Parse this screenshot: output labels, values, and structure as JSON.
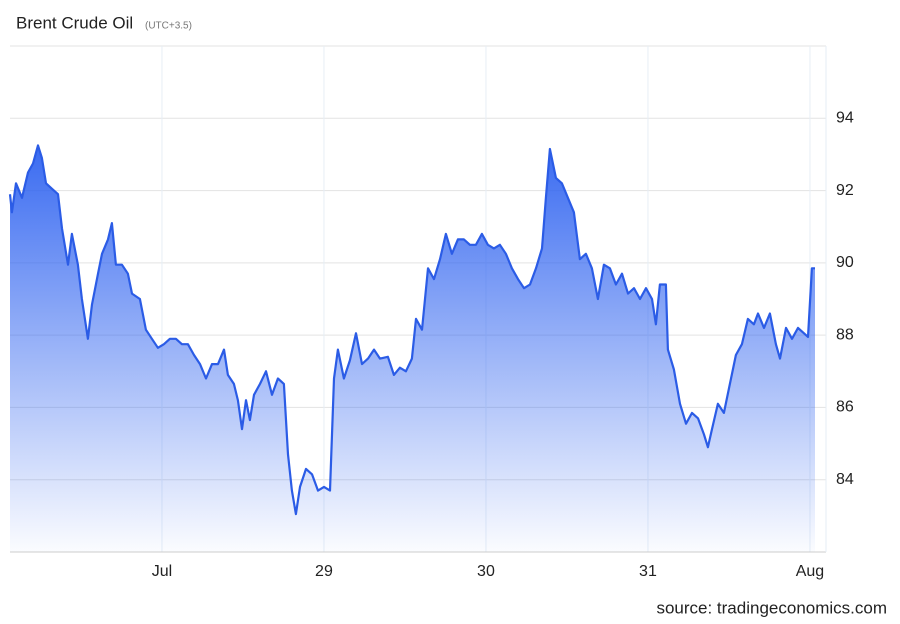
{
  "chart_data": {
    "type": "area",
    "title": "Brent Crude Oil",
    "subtitle": "(UTC+3.5)",
    "source": "source: tradingeconomics.com",
    "color": "#2b5ce6",
    "xlim": [
      -0.938,
      4.099
    ],
    "xticks": [
      {
        "value": 0,
        "label": "Jul"
      },
      {
        "value": 1,
        "label": "29"
      },
      {
        "value": 2,
        "label": "30"
      },
      {
        "value": 3,
        "label": "31"
      },
      {
        "value": 4,
        "label": "Aug"
      }
    ],
    "ylim": [
      82,
      96
    ],
    "yticks": [
      84,
      86,
      88,
      90,
      92,
      94
    ],
    "grid": true,
    "x": [
      -0.938,
      -0.926,
      -0.901,
      -0.864,
      -0.827,
      -0.796,
      -0.765,
      -0.741,
      -0.716,
      -0.679,
      -0.642,
      -0.617,
      -0.58,
      -0.556,
      -0.519,
      -0.494,
      -0.457,
      -0.432,
      -0.395,
      -0.37,
      -0.333,
      -0.309,
      -0.284,
      -0.247,
      -0.21,
      -0.185,
      -0.136,
      -0.099,
      -0.062,
      -0.025,
      0.012,
      0.049,
      0.086,
      0.123,
      0.16,
      0.198,
      0.235,
      0.272,
      0.309,
      0.346,
      0.383,
      0.407,
      0.444,
      0.469,
      0.494,
      0.519,
      0.543,
      0.568,
      0.605,
      0.642,
      0.679,
      0.716,
      0.753,
      0.778,
      0.802,
      0.827,
      0.852,
      0.889,
      0.926,
      0.963,
      1.0,
      1.037,
      1.062,
      1.086,
      1.123,
      1.16,
      1.198,
      1.235,
      1.272,
      1.309,
      1.346,
      1.395,
      1.432,
      1.469,
      1.506,
      1.543,
      1.568,
      1.605,
      1.642,
      1.679,
      1.716,
      1.753,
      1.79,
      1.827,
      1.864,
      1.901,
      1.938,
      1.975,
      2.012,
      2.049,
      2.086,
      2.123,
      2.16,
      2.198,
      2.235,
      2.272,
      2.309,
      2.346,
      2.37,
      2.395,
      2.432,
      2.469,
      2.506,
      2.543,
      2.58,
      2.617,
      2.654,
      2.691,
      2.728,
      2.765,
      2.802,
      2.84,
      2.877,
      2.914,
      2.951,
      2.988,
      3.025,
      3.049,
      3.074,
      3.111,
      3.123,
      3.16,
      3.198,
      3.235,
      3.272,
      3.309,
      3.346,
      3.37,
      3.395,
      3.432,
      3.469,
      3.506,
      3.543,
      3.58,
      3.617,
      3.654,
      3.679,
      3.716,
      3.753,
      3.79,
      3.815,
      3.852,
      3.889,
      3.926,
      3.963,
      3.988,
      4.012,
      4.031
    ],
    "values": [
      91.9,
      91.4,
      92.2,
      91.8,
      92.5,
      92.75,
      93.25,
      92.9,
      92.2,
      92.05,
      91.9,
      90.95,
      89.95,
      90.8,
      89.95,
      89.0,
      87.9,
      88.85,
      89.7,
      90.25,
      90.65,
      91.1,
      89.95,
      89.95,
      89.7,
      89.15,
      89.0,
      88.15,
      87.9,
      87.65,
      87.75,
      87.9,
      87.9,
      87.75,
      87.75,
      87.45,
      87.2,
      86.8,
      87.2,
      87.2,
      87.6,
      86.9,
      86.65,
      86.2,
      85.4,
      86.2,
      85.65,
      86.35,
      86.65,
      87.0,
      86.35,
      86.8,
      86.65,
      84.7,
      83.7,
      83.05,
      83.8,
      84.3,
      84.15,
      83.7,
      83.8,
      83.7,
      86.8,
      87.6,
      86.8,
      87.3,
      88.05,
      87.2,
      87.35,
      87.6,
      87.35,
      87.4,
      86.9,
      87.1,
      87.0,
      87.35,
      88.45,
      88.15,
      89.85,
      89.55,
      90.1,
      90.8,
      90.25,
      90.65,
      90.65,
      90.5,
      90.5,
      90.8,
      90.5,
      90.4,
      90.5,
      90.25,
      89.85,
      89.55,
      89.3,
      89.4,
      89.85,
      90.4,
      91.8,
      93.15,
      92.35,
      92.2,
      91.8,
      91.4,
      90.1,
      90.25,
      89.85,
      89.0,
      89.95,
      89.85,
      89.4,
      89.7,
      89.15,
      89.3,
      89.0,
      89.3,
      89.0,
      88.3,
      89.4,
      89.4,
      87.6,
      87.05,
      86.1,
      85.55,
      85.85,
      85.7,
      85.25,
      84.9,
      85.4,
      86.1,
      85.85,
      86.65,
      87.45,
      87.75,
      88.45,
      88.3,
      88.6,
      88.2,
      88.6,
      87.75,
      87.35,
      88.2,
      87.9,
      88.2,
      88.05,
      87.95,
      89.85,
      89.85
    ]
  }
}
